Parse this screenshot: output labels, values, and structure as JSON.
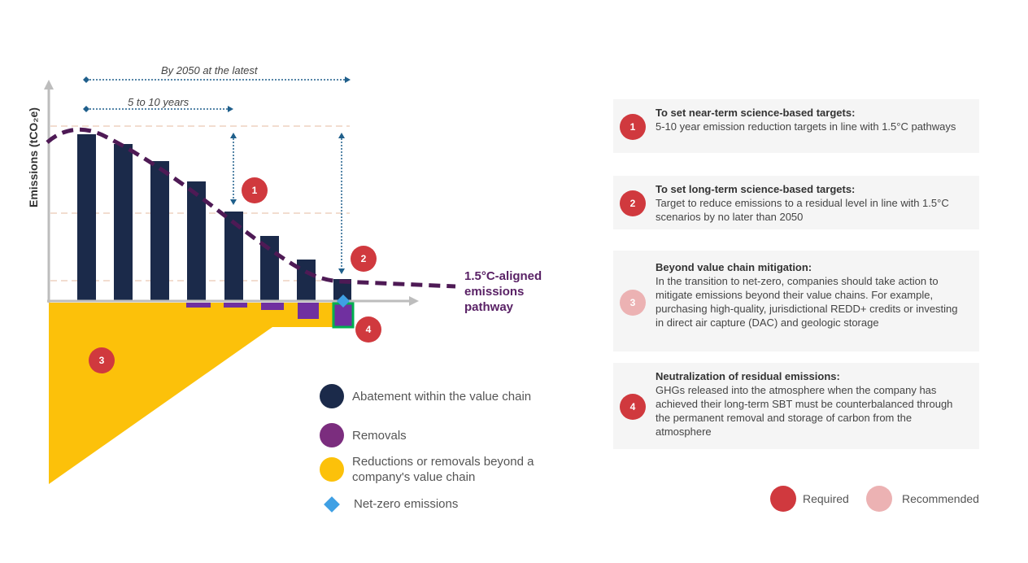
{
  "chart": {
    "y_axis_label": "Emissions (tCO₂e)",
    "span_long": "By 2050 at the latest",
    "span_short": "5 to 10 years",
    "pathway_label": [
      "1.5°C-aligned",
      "emissions",
      "pathway"
    ],
    "markers": [
      "1",
      "2",
      "3",
      "4"
    ]
  },
  "legend": [
    {
      "label": "Abatement within the value chain",
      "color": "#1b2a4a",
      "icon": "circle"
    },
    {
      "label": "Removals",
      "color": "#7b2d7e",
      "icon": "circle"
    },
    {
      "label": "Reductions or removals beyond a company's value chain",
      "color": "#fcc10a",
      "icon": "circle"
    },
    {
      "label": "Net-zero emissions",
      "color": "#3fa0e4",
      "icon": "diamond"
    }
  ],
  "cards": [
    {
      "num": "1",
      "title": "To set near-term science-based targets:",
      "text": "5-10 year emission reduction targets in line with 1.5°C pathways",
      "level": "required"
    },
    {
      "num": "2",
      "title": "To set long-term science-based targets:",
      "text": "Target to reduce emissions to a residual level in line with 1.5°C scenarios by no later than 2050",
      "level": "required"
    },
    {
      "num": "3",
      "title": "Beyond value chain mitigation:",
      "text": "In the transition to net-zero, companies should take action to mitigate emissions beyond their value chains. For example, purchasing high-quality, jurisdictional REDD+ credits or investing in direct air capture (DAC) and geologic storage",
      "level": "recommended"
    },
    {
      "num": "4",
      "title": "Neutralization of residual emissions:",
      "text": "GHGs released into the atmosphere when the company has achieved their long-term SBT must be counterbalanced through the permanent removal and storage of carbon from the atmosphere",
      "level": "required"
    }
  ],
  "key": {
    "required": "Required",
    "recommended": "Recommended"
  },
  "colors": {
    "required": "#d0393e",
    "recommended": "#ecb2b3",
    "pathway": "#4e1a55",
    "bars": "#1b2a4a",
    "removals": "#7030a0",
    "beyond": "#fcc10a"
  }
}
